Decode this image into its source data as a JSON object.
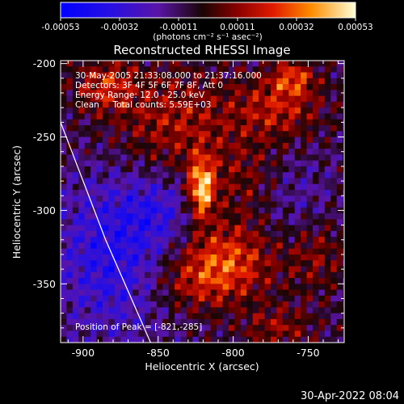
{
  "chart_data": {
    "type": "heatmap",
    "title": "Reconstructed RHESSI Image",
    "xlabel": "Heliocentric X (arcsec)",
    "ylabel": "Heliocentric Y (arcsec)",
    "xlim": [
      -915,
      -726
    ],
    "ylim": [
      -390,
      -198
    ],
    "x_ticks": [
      -900,
      -850,
      -800,
      -750
    ],
    "y_ticks": [
      -200,
      -250,
      -300,
      -350
    ],
    "colorbar": {
      "ticks": [
        "-0.00053",
        "-0.00032",
        "-0.00011",
        "0.00011",
        "0.00032",
        "0.00053"
      ],
      "range": [
        -0.00053,
        0.00053
      ],
      "unit_label": "(photons cm⁻² s⁻¹ asec⁻²)"
    },
    "annotations": [
      "30-May-2005 21:33:08.000 to 21:37:16.000",
      "Detectors: 3F 4F 5F 6F 7F 8F, Att 0",
      "Energy Range: 12.0 - 25.0 keV",
      "Clean     Total counts: 5.59E+03"
    ],
    "peak_label": "Position of Peak = [-821,-285]",
    "peak": {
      "x": -821,
      "y": -285
    },
    "limb_line": [
      {
        "x": -915,
        "y": -240
      },
      {
        "x": -900,
        "y": -280
      },
      {
        "x": -885,
        "y": -320
      },
      {
        "x": -870,
        "y": -355
      },
      {
        "x": -855,
        "y": -390
      }
    ],
    "features": [
      {
        "x": -821,
        "y": -285,
        "value": 0.00053,
        "sx": 6,
        "sy": 14
      },
      {
        "x": -805,
        "y": -335,
        "value": 0.00034,
        "sx": 22,
        "sy": 18
      },
      {
        "x": -840,
        "y": -240,
        "value": 0.00022,
        "sx": 30,
        "sy": 25
      },
      {
        "x": -885,
        "y": -215,
        "value": 0.00025,
        "sx": 14,
        "sy": 12
      },
      {
        "x": -770,
        "y": -230,
        "value": 0.00024,
        "sx": 20,
        "sy": 15
      },
      {
        "x": -760,
        "y": -210,
        "value": 0.00028,
        "sx": 10,
        "sy": 8
      },
      {
        "x": -790,
        "y": -280,
        "value": 0.00014,
        "sx": 20,
        "sy": 20
      },
      {
        "x": -830,
        "y": -350,
        "value": 0.00016,
        "sx": 20,
        "sy": 14
      },
      {
        "x": -745,
        "y": -330,
        "value": 0.00016,
        "sx": 14,
        "sy": 18
      },
      {
        "x": -770,
        "y": -380,
        "value": 0.00018,
        "sx": 16,
        "sy": 10
      },
      {
        "x": -880,
        "y": -330,
        "value": -0.00028,
        "sx": 28,
        "sy": 40
      },
      {
        "x": -850,
        "y": -300,
        "value": -0.00016,
        "sx": 16,
        "sy": 16
      },
      {
        "x": -760,
        "y": -290,
        "value": -0.00013,
        "sx": 18,
        "sy": 22
      }
    ]
  },
  "footer": {
    "timestamp": "30-Apr-2022 08:04"
  }
}
